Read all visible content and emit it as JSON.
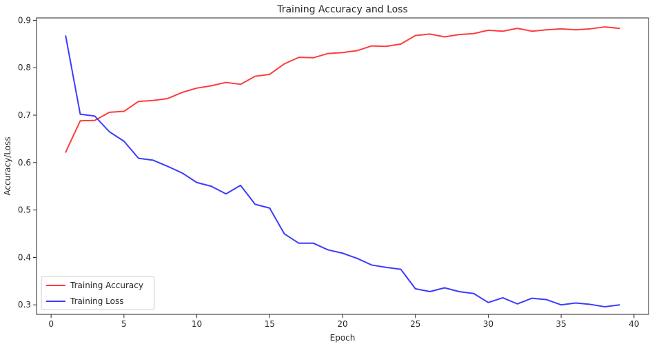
{
  "chart_data": {
    "type": "line",
    "title": "Training Accuracy and Loss",
    "xlabel": "Epoch",
    "ylabel": "Accuracy/Loss",
    "xlim": [
      -1,
      41
    ],
    "ylim": [
      0.28,
      0.905
    ],
    "xticks": [
      0,
      5,
      10,
      15,
      20,
      25,
      30,
      35,
      40
    ],
    "yticks": [
      0.3,
      0.4,
      0.5,
      0.6,
      0.7,
      0.8,
      0.9
    ],
    "xtick_labels": [
      "0",
      "5",
      "10",
      "15",
      "20",
      "25",
      "30",
      "35",
      "40"
    ],
    "ytick_labels": [
      "0.3",
      "0.4",
      "0.5",
      "0.6",
      "0.7",
      "0.8",
      "0.9"
    ],
    "grid": false,
    "legend_position": "lower-left",
    "x": [
      1,
      2,
      3,
      4,
      5,
      6,
      7,
      8,
      9,
      10,
      11,
      12,
      13,
      14,
      15,
      16,
      17,
      18,
      19,
      20,
      21,
      22,
      23,
      24,
      25,
      26,
      27,
      28,
      29,
      30,
      31,
      32,
      33,
      34,
      35,
      36,
      37,
      38,
      39
    ],
    "series": [
      {
        "name": "Training Accuracy",
        "color": "#ff3b3b",
        "values": [
          0.622,
          0.688,
          0.689,
          0.706,
          0.708,
          0.729,
          0.731,
          0.735,
          0.748,
          0.757,
          0.762,
          0.769,
          0.765,
          0.782,
          0.786,
          0.808,
          0.822,
          0.821,
          0.83,
          0.832,
          0.836,
          0.846,
          0.845,
          0.85,
          0.868,
          0.871,
          0.865,
          0.87,
          0.872,
          0.879,
          0.877,
          0.883,
          0.877,
          0.88,
          0.882,
          0.88,
          0.882,
          0.886,
          0.883
        ]
      },
      {
        "name": "Training Loss",
        "color": "#3b3bff",
        "values": [
          0.867,
          0.702,
          0.698,
          0.665,
          0.645,
          0.609,
          0.605,
          0.592,
          0.578,
          0.558,
          0.55,
          0.534,
          0.552,
          0.512,
          0.504,
          0.45,
          0.43,
          0.43,
          0.416,
          0.409,
          0.398,
          0.384,
          0.379,
          0.375,
          0.334,
          0.328,
          0.336,
          0.328,
          0.324,
          0.305,
          0.315,
          0.302,
          0.314,
          0.311,
          0.3,
          0.304,
          0.301,
          0.296,
          0.3
        ]
      }
    ]
  }
}
